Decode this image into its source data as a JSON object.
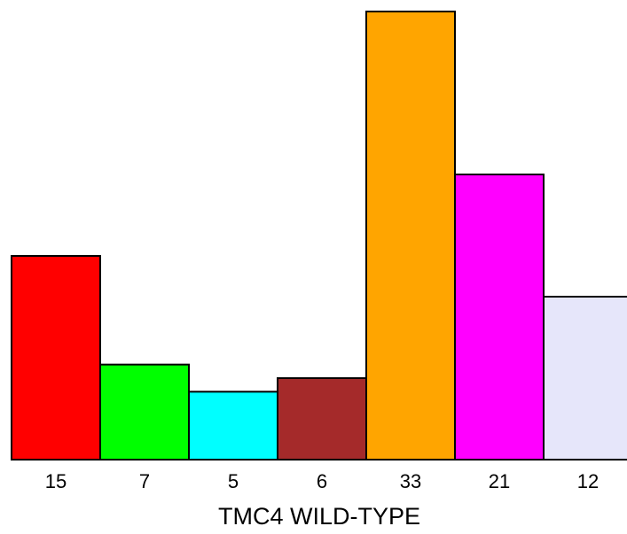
{
  "chart_data": {
    "type": "bar",
    "categories": [
      "15",
      "7",
      "5",
      "6",
      "33",
      "21",
      "12"
    ],
    "values": [
      15,
      7,
      5,
      6,
      33,
      21,
      12
    ],
    "colors": [
      "#ff0000",
      "#00ff00",
      "#00ffff",
      "#a52a2a",
      "#ffa500",
      "#ff00ff",
      "#e6e6fa"
    ],
    "xlabel": "TMC4 WILD-TYPE",
    "ylim": [
      0,
      33
    ],
    "grid": false
  }
}
